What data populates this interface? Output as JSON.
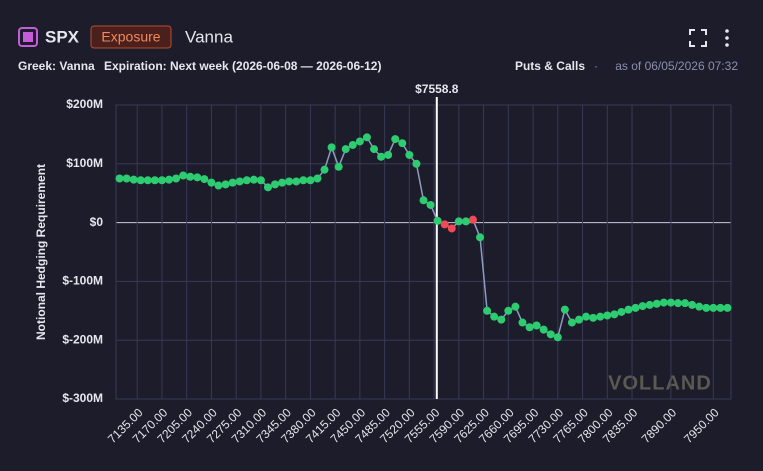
{
  "header": {
    "symbol": "SPX",
    "badge": "Exposure",
    "greek_title": "Vanna",
    "greek": "Greek: Vanna",
    "expiration": "Expiration: Next week (2026-06-08 — 2026-06-12)",
    "side": "Puts & Calls",
    "separator": "·",
    "as_of": "as of 06/05/2026 07:32"
  },
  "chart_data": {
    "type": "scatter_line",
    "ylabel": "Notional Hedging Requirement",
    "watermark": "VOLLAND",
    "x": [
      7110,
      7120,
      7130,
      7140,
      7150,
      7160,
      7170,
      7180,
      7190,
      7200,
      7210,
      7220,
      7230,
      7240,
      7250,
      7260,
      7270,
      7280,
      7290,
      7300,
      7310,
      7320,
      7330,
      7340,
      7350,
      7360,
      7370,
      7380,
      7390,
      7400,
      7410,
      7420,
      7430,
      7440,
      7450,
      7460,
      7470,
      7480,
      7490,
      7500,
      7510,
      7520,
      7530,
      7540,
      7550,
      7560,
      7570,
      7580,
      7590,
      7600,
      7610,
      7620,
      7630,
      7640,
      7650,
      7660,
      7670,
      7680,
      7690,
      7700,
      7710,
      7720,
      7730,
      7740,
      7750,
      7760,
      7770,
      7780,
      7790,
      7800,
      7810,
      7820,
      7830,
      7840,
      7850,
      7860,
      7870,
      7880,
      7890,
      7900,
      7910,
      7920,
      7930,
      7940,
      7950,
      7960,
      7970
    ],
    "values": [
      75,
      75,
      73,
      72,
      72,
      72,
      72,
      73,
      75,
      80,
      78,
      77,
      74,
      68,
      63,
      65,
      68,
      70,
      72,
      73,
      72,
      60,
      65,
      68,
      70,
      70,
      72,
      72,
      75,
      90,
      128,
      95,
      125,
      132,
      138,
      145,
      125,
      112,
      115,
      142,
      135,
      115,
      100,
      38,
      30,
      3,
      -3,
      -10,
      2,
      2,
      5,
      -25,
      -150,
      -160,
      -165,
      -150,
      -143,
      -170,
      -178,
      -175,
      -182,
      -190,
      -195,
      -148,
      -170,
      -165,
      -160,
      -162,
      -160,
      -158,
      -156,
      -152,
      -148,
      -145,
      -142,
      -140,
      -138,
      -136,
      -136,
      -137,
      -137,
      -140,
      -143,
      -145,
      -145,
      -145,
      -145
    ],
    "color": "#2ecc71",
    "line_color": "#8e9cc4",
    "highlight": {
      "color": "#ef4a55",
      "x": [
        7570,
        7580,
        7610
      ]
    },
    "spot": {
      "value": 7558.8,
      "label": "$7558.8"
    },
    "xlim": [
      7105,
      7975
    ],
    "xticks": [
      {
        "value": 7135,
        "label": "7135.00"
      },
      {
        "value": 7170,
        "label": "7170.00"
      },
      {
        "value": 7205,
        "label": "7205.00"
      },
      {
        "value": 7240,
        "label": "7240.00"
      },
      {
        "value": 7275,
        "label": "7275.00"
      },
      {
        "value": 7310,
        "label": "7310.00"
      },
      {
        "value": 7345,
        "label": "7345.00"
      },
      {
        "value": 7380,
        "label": "7380.00"
      },
      {
        "value": 7415,
        "label": "7415.00"
      },
      {
        "value": 7450,
        "label": "7450.00"
      },
      {
        "value": 7485,
        "label": "7485.00"
      },
      {
        "value": 7520,
        "label": "7520.00"
      },
      {
        "value": 7555,
        "label": "7555.00"
      },
      {
        "value": 7590,
        "label": "7590.00"
      },
      {
        "value": 7625,
        "label": "7625.00"
      },
      {
        "value": 7660,
        "label": "7660.00"
      },
      {
        "value": 7695,
        "label": "7695.00"
      },
      {
        "value": 7730,
        "label": "7730.00"
      },
      {
        "value": 7765,
        "label": "7765.00"
      },
      {
        "value": 7800,
        "label": "7800.00"
      },
      {
        "value": 7835,
        "label": "7835.00"
      },
      {
        "value": 7890,
        "label": "7890.00"
      },
      {
        "value": 7950,
        "label": "7950.00"
      }
    ],
    "ylim": [
      -300,
      200
    ],
    "yticks": [
      {
        "value": -300,
        "label": "$-300M"
      },
      {
        "value": -200,
        "label": "$-200M"
      },
      {
        "value": -100,
        "label": "$-100M"
      },
      {
        "value": 0,
        "label": "$0"
      },
      {
        "value": 100,
        "label": "$100M"
      },
      {
        "value": 200,
        "label": "$200M"
      }
    ],
    "grid": true
  }
}
